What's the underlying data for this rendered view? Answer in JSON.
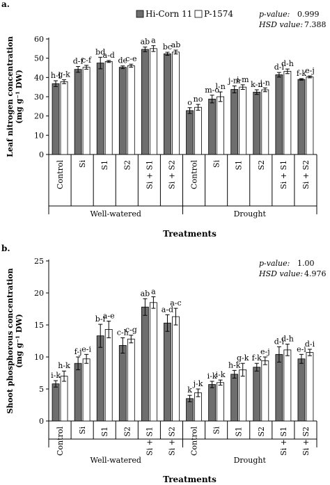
{
  "figure": {
    "legend": [
      {
        "name": "Hi-Corn 11",
        "color": "#6e6e6e"
      },
      {
        "name": "P-1574",
        "color": "#ffffff"
      }
    ]
  },
  "chart_data": [
    {
      "type": "bar",
      "panel_label": "a.",
      "ylabel": "Leaf nitrogen concentration (mg g⁻¹ DW)",
      "xlabel": "Treatments",
      "ylim": [
        0,
        60
      ],
      "yticks": [
        0,
        10,
        20,
        30,
        40,
        50,
        60
      ],
      "stats": {
        "p_label": "p-value:",
        "p_value": "0.999",
        "hsd_label": "HSD value:",
        "hsd_value": "7.388"
      },
      "groups": [
        {
          "name": "Well-watered",
          "categories": [
            "Control",
            "Si",
            "S1",
            "S2",
            "Si + S1",
            "Si + S2"
          ]
        },
        {
          "name": "Drought",
          "categories": [
            "Control",
            "Si",
            "S1",
            "S2",
            "Si + S1",
            "Si + S2"
          ]
        }
      ],
      "series": [
        {
          "name": "Hi-Corn 11",
          "values": [
            36.8,
            44.2,
            47.5,
            45.3,
            54.6,
            52.3,
            22.8,
            28.8,
            33.8,
            32.4,
            41.4,
            39.0
          ],
          "errors": [
            1.5,
            1.5,
            3.0,
            0.7,
            1.2,
            0.8,
            1.5,
            2.0,
            1.8,
            1.2,
            1.2,
            0.4
          ],
          "letters": [
            "h-l",
            "d-f",
            "bd",
            "de",
            "ab",
            "bc",
            "o",
            "m-o",
            "j-m",
            "k-n",
            "d-i",
            "f-k"
          ]
        },
        {
          "name": "P-1574",
          "values": [
            37.8,
            45.3,
            48.3,
            46.1,
            55.0,
            53.2,
            24.5,
            30.0,
            35.0,
            33.6,
            43.2,
            40.3
          ],
          "errors": [
            1.0,
            1.0,
            0.5,
            0.8,
            1.5,
            1.0,
            1.5,
            2.5,
            1.2,
            1.0,
            1.2,
            0.5
          ],
          "letters": [
            "g-k",
            "c-f",
            "a-d",
            "c-e",
            "a",
            "ab",
            "no",
            "l-n",
            "i-m",
            "j-n",
            "d-h",
            "e-j"
          ]
        }
      ]
    },
    {
      "type": "bar",
      "panel_label": "b.",
      "ylabel": "Shoot phosphorous concentration (mg g⁻¹ DW)",
      "xlabel": "Treatments",
      "ylim": [
        0,
        25
      ],
      "yticks": [
        0,
        5,
        10,
        15,
        20,
        25
      ],
      "stats": {
        "p_label": "p-value:",
        "p_value": "1.00",
        "hsd_label": "HSD value:",
        "hsd_value": "4.976"
      },
      "groups": [
        {
          "name": "Well-watered",
          "categories": [
            "Control",
            "Si",
            "S1",
            "S2",
            "Si + S1",
            "Si + S2"
          ]
        },
        {
          "name": "Drought",
          "categories": [
            "Control",
            "Si",
            "S1",
            "S2",
            "Si + S1",
            "Si + S2"
          ]
        }
      ],
      "series": [
        {
          "name": "Hi-Corn 11",
          "values": [
            5.8,
            9.0,
            13.3,
            11.8,
            17.8,
            15.3,
            3.5,
            5.7,
            7.3,
            8.4,
            10.4,
            9.7
          ],
          "errors": [
            0.5,
            1.0,
            1.8,
            1.2,
            1.3,
            1.3,
            0.5,
            0.5,
            0.6,
            0.6,
            1.2,
            0.7
          ],
          "letters": [
            "i-k",
            "f-j",
            "b-f",
            "c-h",
            "ab",
            "a-d",
            "k",
            "i-k",
            "h-k",
            "f-k",
            "d-i",
            "e-i"
          ]
        },
        {
          "name": "P-1574",
          "values": [
            7.0,
            9.7,
            14.3,
            12.8,
            18.5,
            16.3,
            4.4,
            6.0,
            8.0,
            9.4,
            11.1,
            10.7
          ],
          "errors": [
            0.8,
            0.7,
            1.3,
            0.6,
            0.9,
            1.3,
            0.6,
            0.4,
            1.0,
            0.6,
            0.9,
            0.5
          ],
          "letters": [
            "h-k",
            "e-i",
            "a-e",
            "c-g",
            "a",
            "a-c",
            "j-k",
            "i-k",
            "g-k",
            "e-j",
            "d-h",
            "d-i"
          ]
        }
      ]
    }
  ]
}
